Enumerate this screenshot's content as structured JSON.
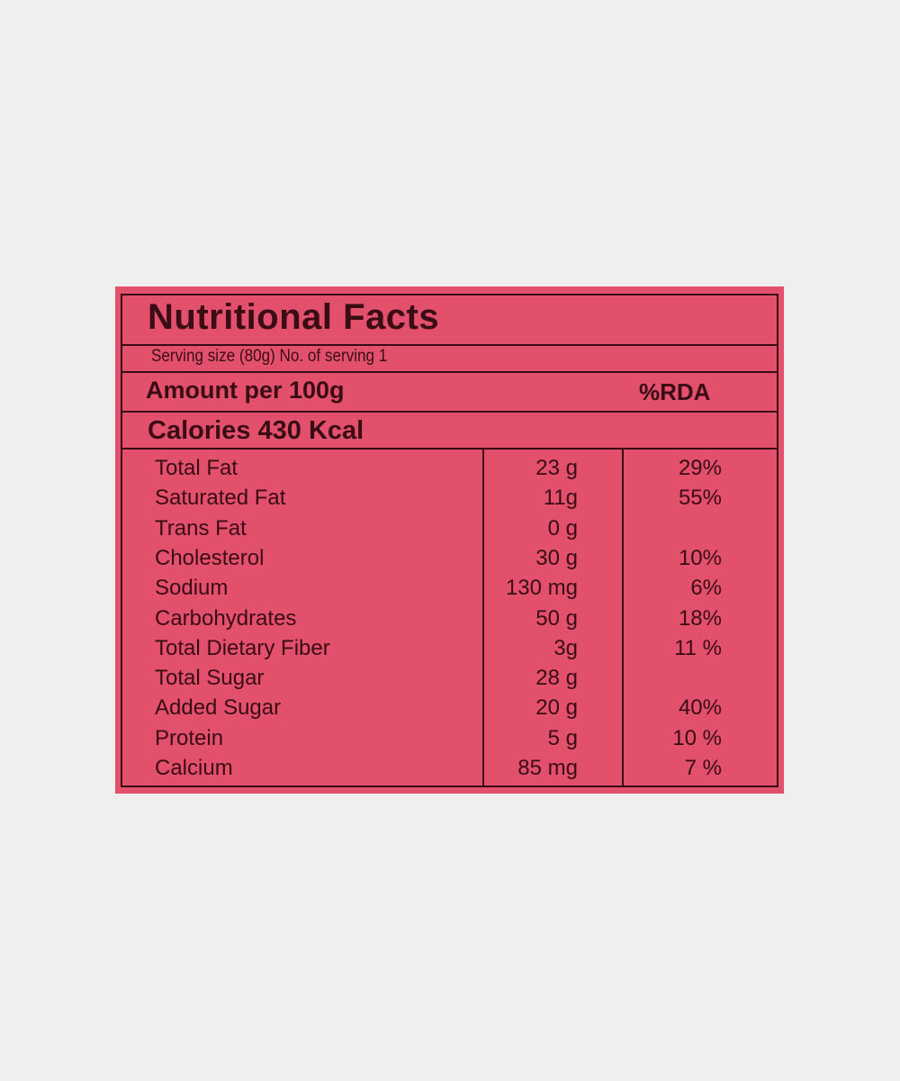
{
  "label": {
    "title": "Nutritional Facts",
    "serving": "Serving size (80g) No. of serving 1",
    "amount_header": "Amount per 100g",
    "rda_header": "%RDA",
    "calories": "Calories 430 Kcal",
    "background_color": "#e2506b",
    "text_color": "#3a0d16",
    "rows": [
      {
        "name": "Total Fat",
        "amount": "23 g",
        "rda": "29%"
      },
      {
        "name": "Saturated Fat",
        "amount": "11g",
        "rda": "55%"
      },
      {
        "name": "Trans Fat",
        "amount": "0 g",
        "rda": ""
      },
      {
        "name": "Cholesterol",
        "amount": "30 g",
        "rda": "10%"
      },
      {
        "name": "Sodium",
        "amount": "130 mg",
        "rda": "6%"
      },
      {
        "name": "Carbohydrates",
        "amount": "50 g",
        "rda": "18%"
      },
      {
        "name": "Total Dietary Fiber",
        "amount": "3g",
        "rda": "11 %"
      },
      {
        "name": "Total Sugar",
        "amount": "28 g",
        "rda": ""
      },
      {
        "name": "Added Sugar",
        "amount": "20 g",
        "rda": "40%"
      },
      {
        "name": "Protein",
        "amount": "5 g",
        "rda": "10 %"
      },
      {
        "name": "Calcium",
        "amount": "85 mg",
        "rda": "7 %"
      }
    ]
  }
}
